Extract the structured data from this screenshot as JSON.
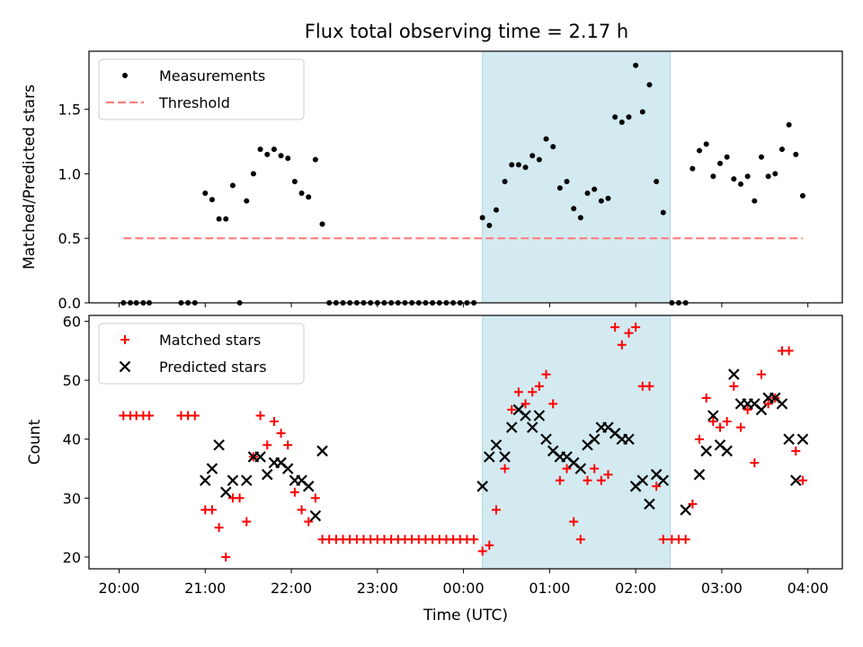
{
  "title": "Flux total observing time = 2.17 h",
  "chart_data": [
    {
      "type": "scatter",
      "ylabel": "Matched/Predicted stars",
      "ylim": [
        0,
        1.95
      ],
      "yticks": [
        "0.0",
        "0.5",
        "1.0",
        "1.5"
      ],
      "xlim": [
        -0.35,
        8.4
      ],
      "highlight": {
        "x_start": 4.22,
        "x_end": 6.4,
        "color": "#d3eaf1"
      },
      "legend": {
        "position": "top-left",
        "entries": [
          "Measurements",
          "Threshold"
        ]
      },
      "series": [
        {
          "name": "Measurements",
          "marker": "dot",
          "color": "#000000",
          "points": [
            [
              0.05,
              0
            ],
            [
              0.13,
              0
            ],
            [
              0.2,
              0
            ],
            [
              0.28,
              0
            ],
            [
              0.35,
              0
            ],
            [
              0.72,
              0
            ],
            [
              0.8,
              0
            ],
            [
              0.88,
              0
            ],
            [
              1.0,
              0.85
            ],
            [
              1.08,
              0.8
            ],
            [
              1.16,
              0.65
            ],
            [
              1.24,
              0.65
            ],
            [
              1.32,
              0.91
            ],
            [
              1.4,
              0
            ],
            [
              1.48,
              0.79
            ],
            [
              1.56,
              1.0
            ],
            [
              1.64,
              1.19
            ],
            [
              1.72,
              1.15
            ],
            [
              1.8,
              1.19
            ],
            [
              1.88,
              1.14
            ],
            [
              1.96,
              1.12
            ],
            [
              2.04,
              0.94
            ],
            [
              2.12,
              0.85
            ],
            [
              2.2,
              0.82
            ],
            [
              2.28,
              1.11
            ],
            [
              2.36,
              0.61
            ],
            [
              2.44,
              0
            ],
            [
              2.52,
              0
            ],
            [
              2.6,
              0
            ],
            [
              2.68,
              0
            ],
            [
              2.76,
              0
            ],
            [
              2.84,
              0
            ],
            [
              2.92,
              0
            ],
            [
              3.0,
              0
            ],
            [
              3.08,
              0
            ],
            [
              3.16,
              0
            ],
            [
              3.24,
              0
            ],
            [
              3.32,
              0
            ],
            [
              3.4,
              0
            ],
            [
              3.48,
              0
            ],
            [
              3.56,
              0
            ],
            [
              3.64,
              0
            ],
            [
              3.72,
              0
            ],
            [
              3.8,
              0
            ],
            [
              3.88,
              0
            ],
            [
              3.96,
              0
            ],
            [
              4.04,
              0
            ],
            [
              4.12,
              0
            ],
            [
              4.22,
              0.66
            ],
            [
              4.3,
              0.6
            ],
            [
              4.38,
              0.72
            ],
            [
              4.48,
              0.94
            ],
            [
              4.56,
              1.07
            ],
            [
              4.64,
              1.07
            ],
            [
              4.72,
              1.05
            ],
            [
              4.8,
              1.14
            ],
            [
              4.88,
              1.11
            ],
            [
              4.96,
              1.27
            ],
            [
              5.04,
              1.21
            ],
            [
              5.12,
              0.89
            ],
            [
              5.2,
              0.94
            ],
            [
              5.28,
              0.73
            ],
            [
              5.36,
              0.66
            ],
            [
              5.44,
              0.85
            ],
            [
              5.52,
              0.88
            ],
            [
              5.6,
              0.79
            ],
            [
              5.68,
              0.81
            ],
            [
              5.76,
              1.44
            ],
            [
              5.84,
              1.4
            ],
            [
              5.92,
              1.44
            ],
            [
              6.0,
              1.84
            ],
            [
              6.08,
              1.48
            ],
            [
              6.16,
              1.69
            ],
            [
              6.24,
              0.94
            ],
            [
              6.32,
              0.7
            ],
            [
              6.42,
              0
            ],
            [
              6.5,
              0
            ],
            [
              6.58,
              0
            ],
            [
              6.66,
              1.04
            ],
            [
              6.74,
              1.18
            ],
            [
              6.82,
              1.23
            ],
            [
              6.9,
              0.98
            ],
            [
              6.98,
              1.08
            ],
            [
              7.06,
              1.13
            ],
            [
              7.14,
              0.96
            ],
            [
              7.22,
              0.92
            ],
            [
              7.3,
              0.98
            ],
            [
              7.38,
              0.79
            ],
            [
              7.46,
              1.13
            ],
            [
              7.54,
              0.98
            ],
            [
              7.62,
              1.0
            ],
            [
              7.7,
              1.19
            ],
            [
              7.78,
              1.38
            ],
            [
              7.86,
              1.15
            ],
            [
              7.94,
              0.83
            ]
          ]
        },
        {
          "name": "Threshold",
          "line_style": "dashed",
          "color": "#ff7f7f",
          "x": [
            0.05,
            7.94
          ],
          "y": [
            0.5,
            0.5
          ]
        }
      ]
    },
    {
      "type": "scatter",
      "xlabel": "Time (UTC)",
      "ylabel": "Count",
      "ylim": [
        18,
        61
      ],
      "yticks": [
        "20",
        "30",
        "40",
        "50",
        "60"
      ],
      "xlim": [
        -0.35,
        8.4
      ],
      "xticks": [
        "20:00",
        "21:00",
        "22:00",
        "23:00",
        "00:00",
        "01:00",
        "02:00",
        "03:00",
        "04:00"
      ],
      "highlight": {
        "x_start": 4.22,
        "x_end": 6.4,
        "color": "#d3eaf1"
      },
      "legend": {
        "position": "top-left",
        "entries": [
          "Matched stars",
          "Predicted stars"
        ]
      },
      "series": [
        {
          "name": "Matched stars",
          "marker": "plus",
          "color": "#ff0000",
          "points": [
            [
              0.05,
              44
            ],
            [
              0.13,
              44
            ],
            [
              0.2,
              44
            ],
            [
              0.28,
              44
            ],
            [
              0.35,
              44
            ],
            [
              0.72,
              44
            ],
            [
              0.8,
              44
            ],
            [
              0.88,
              44
            ],
            [
              1.0,
              28
            ],
            [
              1.08,
              28
            ],
            [
              1.16,
              25
            ],
            [
              1.24,
              20
            ],
            [
              1.32,
              30
            ],
            [
              1.4,
              30
            ],
            [
              1.48,
              26
            ],
            [
              1.56,
              37
            ],
            [
              1.64,
              44
            ],
            [
              1.72,
              39
            ],
            [
              1.8,
              43
            ],
            [
              1.88,
              41
            ],
            [
              1.96,
              39
            ],
            [
              2.04,
              31
            ],
            [
              2.12,
              28
            ],
            [
              2.2,
              26
            ],
            [
              2.28,
              30
            ],
            [
              2.36,
              23
            ],
            [
              2.44,
              23
            ],
            [
              2.52,
              23
            ],
            [
              2.6,
              23
            ],
            [
              2.68,
              23
            ],
            [
              2.76,
              23
            ],
            [
              2.84,
              23
            ],
            [
              2.92,
              23
            ],
            [
              3.0,
              23
            ],
            [
              3.08,
              23
            ],
            [
              3.16,
              23
            ],
            [
              3.24,
              23
            ],
            [
              3.32,
              23
            ],
            [
              3.4,
              23
            ],
            [
              3.48,
              23
            ],
            [
              3.56,
              23
            ],
            [
              3.64,
              23
            ],
            [
              3.72,
              23
            ],
            [
              3.8,
              23
            ],
            [
              3.88,
              23
            ],
            [
              3.96,
              23
            ],
            [
              4.04,
              23
            ],
            [
              4.12,
              23
            ],
            [
              4.22,
              21
            ],
            [
              4.3,
              22
            ],
            [
              4.38,
              28
            ],
            [
              4.48,
              35
            ],
            [
              4.56,
              45
            ],
            [
              4.64,
              48
            ],
            [
              4.72,
              46
            ],
            [
              4.8,
              48
            ],
            [
              4.88,
              49
            ],
            [
              4.96,
              51
            ],
            [
              5.04,
              46
            ],
            [
              5.12,
              33
            ],
            [
              5.2,
              35
            ],
            [
              5.28,
              26
            ],
            [
              5.36,
              23
            ],
            [
              5.44,
              33
            ],
            [
              5.52,
              35
            ],
            [
              5.6,
              33
            ],
            [
              5.68,
              34
            ],
            [
              5.76,
              59
            ],
            [
              5.84,
              56
            ],
            [
              5.92,
              58
            ],
            [
              6.0,
              59
            ],
            [
              6.08,
              49
            ],
            [
              6.16,
              49
            ],
            [
              6.24,
              32
            ],
            [
              6.32,
              23
            ],
            [
              6.42,
              23
            ],
            [
              6.5,
              23
            ],
            [
              6.58,
              23
            ],
            [
              6.66,
              29
            ],
            [
              6.74,
              40
            ],
            [
              6.82,
              47
            ],
            [
              6.9,
              43
            ],
            [
              6.98,
              42
            ],
            [
              7.06,
              43
            ],
            [
              7.14,
              49
            ],
            [
              7.22,
              42
            ],
            [
              7.3,
              45
            ],
            [
              7.38,
              36
            ],
            [
              7.46,
              51
            ],
            [
              7.54,
              46
            ],
            [
              7.62,
              47
            ],
            [
              7.7,
              55
            ],
            [
              7.78,
              55
            ],
            [
              7.86,
              38
            ],
            [
              7.94,
              33
            ]
          ]
        },
        {
          "name": "Predicted stars",
          "marker": "x",
          "color": "#000000",
          "points": [
            [
              1.0,
              33
            ],
            [
              1.08,
              35
            ],
            [
              1.16,
              39
            ],
            [
              1.24,
              31
            ],
            [
              1.32,
              33
            ],
            [
              1.48,
              33
            ],
            [
              1.56,
              37
            ],
            [
              1.64,
              37
            ],
            [
              1.72,
              34
            ],
            [
              1.8,
              36
            ],
            [
              1.88,
              36
            ],
            [
              1.96,
              35
            ],
            [
              2.04,
              33
            ],
            [
              2.12,
              33
            ],
            [
              2.2,
              32
            ],
            [
              2.28,
              27
            ],
            [
              2.36,
              38
            ],
            [
              4.22,
              32
            ],
            [
              4.3,
              37
            ],
            [
              4.38,
              39
            ],
            [
              4.48,
              37
            ],
            [
              4.56,
              42
            ],
            [
              4.64,
              45
            ],
            [
              4.72,
              44
            ],
            [
              4.8,
              42
            ],
            [
              4.88,
              44
            ],
            [
              4.96,
              40
            ],
            [
              5.04,
              38
            ],
            [
              5.12,
              37
            ],
            [
              5.2,
              37
            ],
            [
              5.28,
              36
            ],
            [
              5.36,
              35
            ],
            [
              5.44,
              39
            ],
            [
              5.52,
              40
            ],
            [
              5.6,
              42
            ],
            [
              5.68,
              42
            ],
            [
              5.76,
              41
            ],
            [
              5.84,
              40
            ],
            [
              5.92,
              40
            ],
            [
              6.0,
              32
            ],
            [
              6.08,
              33
            ],
            [
              6.16,
              29
            ],
            [
              6.24,
              34
            ],
            [
              6.32,
              33
            ],
            [
              6.58,
              28
            ],
            [
              6.74,
              34
            ],
            [
              6.82,
              38
            ],
            [
              6.9,
              44
            ],
            [
              6.98,
              39
            ],
            [
              7.06,
              38
            ],
            [
              7.14,
              51
            ],
            [
              7.22,
              46
            ],
            [
              7.3,
              46
            ],
            [
              7.38,
              46
            ],
            [
              7.46,
              45
            ],
            [
              7.54,
              47
            ],
            [
              7.62,
              47
            ],
            [
              7.7,
              46
            ],
            [
              7.78,
              40
            ],
            [
              7.86,
              33
            ],
            [
              7.94,
              40
            ]
          ]
        }
      ]
    }
  ]
}
